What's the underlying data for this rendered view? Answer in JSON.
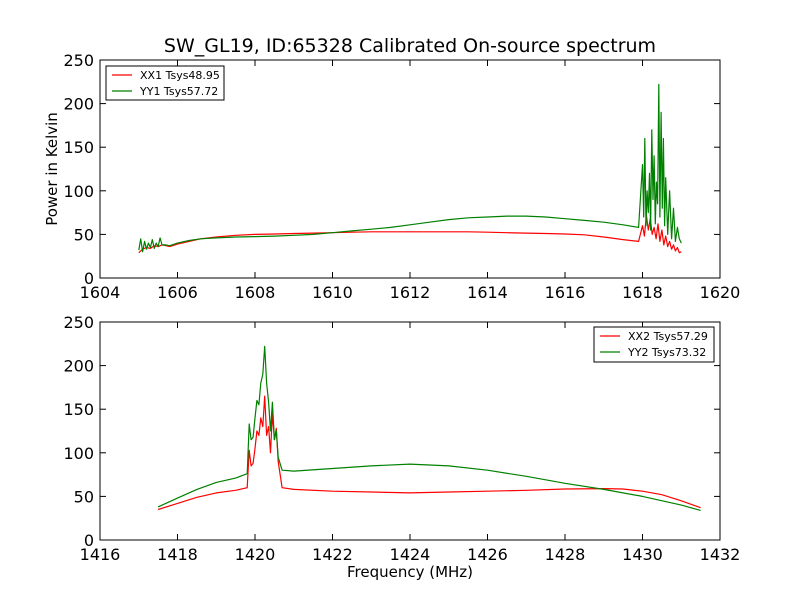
{
  "chart_data": [
    {
      "type": "line",
      "title": "SW_GL19, ID:65328 Calibrated On-source spectrum",
      "xlabel": "",
      "ylabel": "Power in Kelvin",
      "xlim": [
        1604,
        1620
      ],
      "ylim": [
        0,
        250
      ],
      "xticks": [
        "1604",
        "1606",
        "1608",
        "1610",
        "1612",
        "1614",
        "1616",
        "1618",
        "1620"
      ],
      "yticks": [
        "0",
        "50",
        "100",
        "150",
        "200",
        "250"
      ],
      "legend_position": "upper-left",
      "series": [
        {
          "name": "XX1 Tsys48.95",
          "color": "#ff0000",
          "x": [
            1605.0,
            1605.1,
            1605.2,
            1605.3,
            1605.4,
            1605.5,
            1605.6,
            1605.7,
            1605.8,
            1606.0,
            1606.3,
            1606.6,
            1607.0,
            1607.5,
            1608.0,
            1608.5,
            1609.0,
            1609.5,
            1610.0,
            1610.5,
            1611.0,
            1611.5,
            1612.0,
            1612.5,
            1613.0,
            1613.5,
            1614.0,
            1614.5,
            1615.0,
            1615.5,
            1616.0,
            1616.5,
            1617.0,
            1617.5,
            1617.9,
            1618.0,
            1618.05,
            1618.1,
            1618.15,
            1618.2,
            1618.25,
            1618.3,
            1618.35,
            1618.4,
            1618.45,
            1618.5,
            1618.55,
            1618.6,
            1618.65,
            1618.7,
            1618.75,
            1618.8,
            1618.85,
            1618.9,
            1618.95,
            1619.0
          ],
          "values": [
            29,
            33,
            35,
            34,
            37,
            36,
            38,
            37,
            36,
            39,
            42,
            45,
            47,
            49,
            50,
            50.5,
            51,
            51.5,
            52,
            52.5,
            53,
            53,
            53,
            53,
            53,
            53,
            52.5,
            52,
            51.5,
            51,
            50.5,
            49.5,
            47,
            44,
            42,
            60,
            48,
            72,
            55,
            68,
            50,
            58,
            45,
            62,
            42,
            55,
            38,
            48,
            36,
            42,
            33,
            38,
            31,
            35,
            29,
            30
          ]
        },
        {
          "name": "YY1 Tsys57.72",
          "color": "#008000",
          "x": [
            1605.0,
            1605.05,
            1605.1,
            1605.15,
            1605.2,
            1605.25,
            1605.3,
            1605.35,
            1605.4,
            1605.45,
            1605.5,
            1605.55,
            1605.6,
            1605.7,
            1605.8,
            1606.0,
            1606.3,
            1606.6,
            1607.0,
            1607.5,
            1608.0,
            1608.5,
            1609.0,
            1609.5,
            1610.0,
            1610.5,
            1611.0,
            1611.5,
            1612.0,
            1612.5,
            1613.0,
            1613.5,
            1614.0,
            1614.5,
            1615.0,
            1615.5,
            1616.0,
            1616.5,
            1617.0,
            1617.5,
            1617.9,
            1618.0,
            1618.03,
            1618.06,
            1618.09,
            1618.12,
            1618.15,
            1618.18,
            1618.21,
            1618.24,
            1618.27,
            1618.3,
            1618.33,
            1618.36,
            1618.39,
            1618.42,
            1618.45,
            1618.48,
            1618.51,
            1618.54,
            1618.57,
            1618.6,
            1618.65,
            1618.7,
            1618.75,
            1618.8,
            1618.85,
            1618.9,
            1618.95,
            1619.0
          ],
          "values": [
            32,
            45,
            30,
            42,
            33,
            40,
            35,
            44,
            34,
            40,
            36,
            46,
            38,
            38,
            37,
            40,
            43,
            45,
            46,
            47,
            47.5,
            48,
            49,
            50,
            52,
            54,
            56,
            58,
            61,
            64,
            67,
            69,
            70,
            71,
            71,
            70,
            68,
            66,
            64,
            61,
            58,
            130,
            70,
            160,
            60,
            100,
            75,
            120,
            55,
            170,
            90,
            140,
            62,
            110,
            85,
            222,
            70,
            190,
            80,
            160,
            60,
            115,
            50,
            100,
            45,
            80,
            42,
            58,
            45,
            40
          ]
        }
      ]
    },
    {
      "type": "line",
      "title": "",
      "xlabel": "Frequency (MHz)",
      "ylabel": "",
      "xlim": [
        1416,
        1432
      ],
      "ylim": [
        0,
        250
      ],
      "xticks": [
        "1416",
        "1418",
        "1420",
        "1422",
        "1424",
        "1426",
        "1428",
        "1430",
        "1432"
      ],
      "yticks": [
        "0",
        "50",
        "100",
        "150",
        "200",
        "250"
      ],
      "legend_position": "upper-right",
      "series": [
        {
          "name": "XX2 Tsys57.29",
          "color": "#ff0000",
          "x": [
            1417.5,
            1418.0,
            1418.5,
            1419.0,
            1419.5,
            1419.8,
            1419.85,
            1419.9,
            1419.95,
            1420.0,
            1420.05,
            1420.1,
            1420.15,
            1420.2,
            1420.25,
            1420.3,
            1420.35,
            1420.4,
            1420.45,
            1420.5,
            1420.55,
            1420.6,
            1420.7,
            1421.0,
            1422.0,
            1423.0,
            1424.0,
            1425.0,
            1426.0,
            1427.0,
            1428.0,
            1429.0,
            1429.5,
            1430.0,
            1430.5,
            1431.0,
            1431.5
          ],
          "values": [
            35,
            42,
            49,
            54,
            57,
            60,
            103,
            85,
            88,
            105,
            125,
            120,
            140,
            130,
            165,
            120,
            130,
            100,
            145,
            115,
            128,
            90,
            60,
            58,
            56,
            55,
            54,
            55,
            56,
            57,
            58.5,
            59,
            58.5,
            56,
            52,
            45,
            37
          ]
        },
        {
          "name": "YY2 Tsys73.32",
          "color": "#008000",
          "x": [
            1417.5,
            1418.0,
            1418.5,
            1419.0,
            1419.5,
            1419.8,
            1419.85,
            1419.9,
            1419.95,
            1420.0,
            1420.05,
            1420.1,
            1420.15,
            1420.2,
            1420.25,
            1420.3,
            1420.35,
            1420.4,
            1420.45,
            1420.5,
            1420.55,
            1420.6,
            1420.7,
            1421.0,
            1422.0,
            1423.0,
            1424.0,
            1424.5,
            1425.0,
            1426.0,
            1427.0,
            1428.0,
            1429.0,
            1430.0,
            1431.0,
            1431.5
          ],
          "values": [
            38,
            48,
            58,
            66,
            71,
            76,
            133,
            115,
            118,
            140,
            160,
            155,
            180,
            190,
            222,
            180,
            158,
            125,
            158,
            115,
            125,
            95,
            80,
            79,
            82,
            85,
            87,
            86,
            85,
            80,
            73,
            65,
            58,
            50,
            40,
            34
          ]
        }
      ]
    }
  ]
}
